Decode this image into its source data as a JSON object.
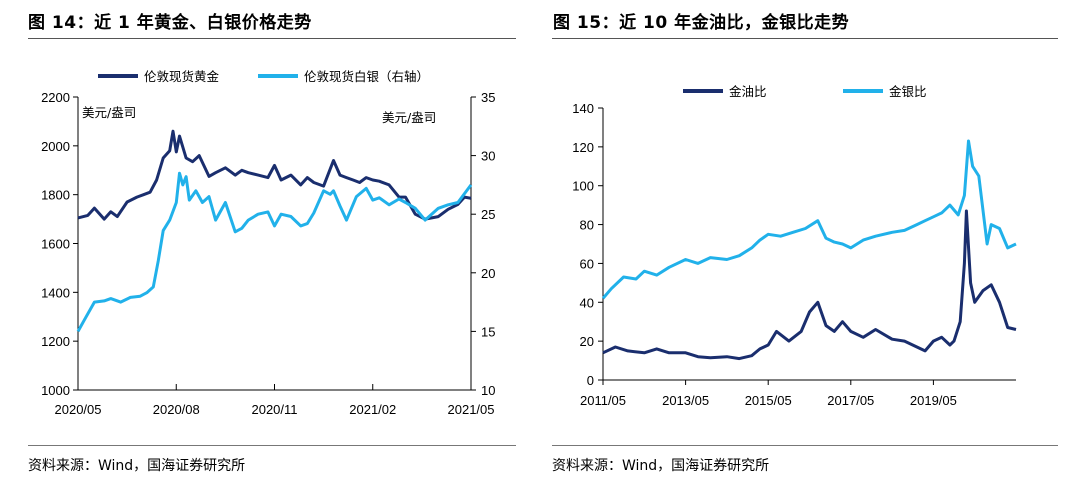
{
  "page": {
    "left_title": "图 14：近 1 年黄金、白银价格走势",
    "right_title": "图 15：近 10 年金油比，金银比走势",
    "left_source": "资料来源：Wind，国海证券研究所",
    "right_source": "资料来源：Wind，国海证券研究所"
  },
  "chart_data": [
    {
      "type": "line",
      "title": "图 14：近 1 年黄金、白银价格走势",
      "ylabel": "美元/盎司",
      "y2label": "美元/盎司",
      "ylim": [
        1000,
        2200
      ],
      "y2lim": [
        10,
        35
      ],
      "yticks": [
        "1000",
        "1200",
        "1400",
        "1600",
        "1800",
        "2000",
        "2200"
      ],
      "y2ticks": [
        "10",
        "15",
        "20",
        "25",
        "30",
        "35"
      ],
      "xticks": [
        "2020/05",
        "2020/08",
        "2020/11",
        "2021/02",
        "2021/05"
      ],
      "xlim": [
        0,
        12
      ],
      "colors": {
        "gold": "#1a2e6e",
        "silver": "#21b1ea"
      },
      "series": [
        {
          "name": "伦敦现货黄金",
          "axis": "left",
          "x": [
            0,
            0.3,
            0.5,
            0.8,
            1,
            1.2,
            1.5,
            1.8,
            2,
            2.2,
            2.4,
            2.6,
            2.8,
            2.9,
            3,
            3.1,
            3.3,
            3.5,
            3.7,
            4,
            4.2,
            4.5,
            4.8,
            5,
            5.2,
            5.5,
            5.8,
            6,
            6.2,
            6.5,
            6.8,
            7,
            7.2,
            7.5,
            7.8,
            8,
            8.2,
            8.4,
            8.6,
            8.8,
            9,
            9.2,
            9.5,
            9.8,
            10,
            10.3,
            10.6,
            11,
            11.3,
            11.6,
            11.8,
            12
          ],
          "values": [
            1705,
            1715,
            1745,
            1700,
            1730,
            1710,
            1770,
            1790,
            1800,
            1810,
            1860,
            1950,
            1980,
            2060,
            1975,
            2040,
            1950,
            1935,
            1960,
            1875,
            1890,
            1910,
            1880,
            1900,
            1890,
            1880,
            1870,
            1920,
            1860,
            1880,
            1840,
            1870,
            1850,
            1835,
            1940,
            1880,
            1870,
            1860,
            1850,
            1870,
            1860,
            1855,
            1840,
            1790,
            1790,
            1720,
            1700,
            1710,
            1740,
            1760,
            1790,
            1785
          ]
        },
        {
          "name": "伦敦现货白银（右轴）",
          "axis": "right",
          "x": [
            0,
            0.2,
            0.5,
            0.8,
            1,
            1.3,
            1.6,
            1.9,
            2.1,
            2.3,
            2.45,
            2.6,
            2.8,
            3,
            3.1,
            3.2,
            3.3,
            3.4,
            3.6,
            3.8,
            4,
            4.2,
            4.5,
            4.8,
            5,
            5.2,
            5.5,
            5.8,
            6,
            6.2,
            6.5,
            6.8,
            7,
            7.2,
            7.5,
            7.7,
            7.8,
            8,
            8.2,
            8.5,
            8.8,
            9,
            9.2,
            9.5,
            9.8,
            10,
            10.3,
            10.6,
            11,
            11.3,
            11.6,
            12
          ],
          "values": [
            15,
            16,
            17.5,
            17.6,
            17.8,
            17.5,
            17.9,
            18,
            18.3,
            18.8,
            21,
            23.6,
            24.5,
            26,
            28.5,
            27.5,
            28.2,
            26.2,
            27,
            26,
            26.5,
            24.5,
            26,
            23.5,
            23.8,
            24.5,
            25,
            25.2,
            24,
            25,
            24.8,
            24,
            24.2,
            25.1,
            27,
            26.7,
            27,
            25.7,
            24.5,
            26.5,
            27.2,
            26.2,
            26.4,
            25.8,
            26.3,
            26,
            25.5,
            24.5,
            25.5,
            25.8,
            26,
            27.5
          ]
        }
      ]
    },
    {
      "type": "line",
      "title": "图 15：近 10 年金油比，金银比走势",
      "ylim": [
        0,
        140
      ],
      "yticks": [
        "0",
        "20",
        "40",
        "60",
        "80",
        "100",
        "120",
        "140"
      ],
      "xticks": [
        "2011/05",
        "2013/05",
        "2015/05",
        "2017/05",
        "2019/05"
      ],
      "xlim": [
        0,
        10
      ],
      "colors": {
        "gold_oil": "#1a2e6e",
        "gold_silver": "#21b1ea"
      },
      "series": [
        {
          "name": "金油比",
          "x": [
            0,
            0.3,
            0.6,
            1,
            1.3,
            1.6,
            2,
            2.3,
            2.6,
            3,
            3.3,
            3.6,
            3.8,
            4,
            4.2,
            4.5,
            4.8,
            5,
            5.2,
            5.4,
            5.6,
            5.8,
            6,
            6.3,
            6.6,
            7,
            7.3,
            7.6,
            7.8,
            8,
            8.2,
            8.4,
            8.5,
            8.65,
            8.75,
            8.8,
            8.9,
            9,
            9.2,
            9.4,
            9.6,
            9.8,
            10
          ],
          "values": [
            14,
            17,
            15,
            14,
            16,
            14,
            14,
            12,
            11.5,
            12,
            11,
            12.5,
            16,
            18,
            25,
            20,
            25,
            35,
            40,
            28,
            25,
            30,
            25,
            22,
            26,
            21,
            20,
            17,
            15,
            20,
            22,
            18,
            20,
            30,
            60,
            87,
            50,
            40,
            46,
            49,
            40,
            27,
            26
          ]
        },
        {
          "name": "金银比",
          "x": [
            0,
            0.2,
            0.5,
            0.8,
            1,
            1.3,
            1.6,
            2,
            2.3,
            2.6,
            3,
            3.3,
            3.6,
            3.8,
            4,
            4.3,
            4.6,
            4.9,
            5.2,
            5.4,
            5.6,
            5.8,
            6,
            6.3,
            6.6,
            7,
            7.3,
            7.6,
            7.8,
            8,
            8.2,
            8.4,
            8.6,
            8.75,
            8.85,
            8.95,
            9.1,
            9.3,
            9.4,
            9.6,
            9.8,
            10
          ],
          "values": [
            42,
            47,
            53,
            52,
            56,
            54,
            58,
            62,
            60,
            63,
            62,
            64,
            68,
            72,
            75,
            74,
            76,
            78,
            82,
            73,
            71,
            70,
            68,
            72,
            74,
            76,
            77,
            80,
            82,
            84,
            86,
            90,
            85,
            95,
            123,
            110,
            105,
            70,
            80,
            78,
            68,
            70
          ]
        }
      ]
    }
  ]
}
